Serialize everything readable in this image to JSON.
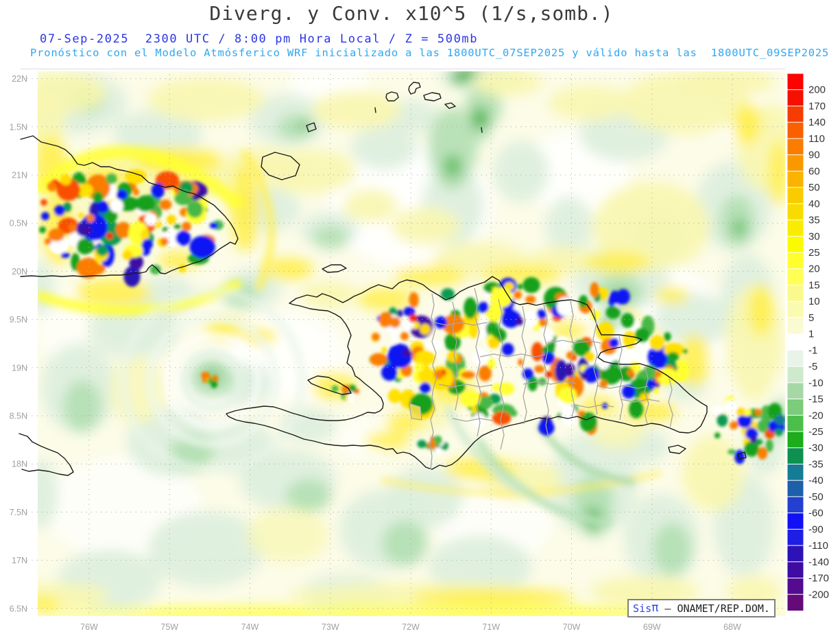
{
  "header": {
    "title": "Diverg. y Conv. x10^5 (1/s,somb.)",
    "datetime_line": "07-Sep-2025  2300 UTC / 8:00 pm Hora Local / Z = 500mb",
    "forecast_line": "Pronóstico con el Modelo Atmósferico WRF inicializado a las 1800UTC_07SEP2025 y válido hasta las  1800UTC_09SEP2025"
  },
  "map": {
    "lat_labels": [
      "22N",
      "1.5N",
      "21N",
      "0.5N",
      "20N",
      "9.5N",
      "19N",
      "8.5N",
      "18N",
      "7.5N",
      "17N",
      "6.5N"
    ],
    "lon_labels": [
      "76W",
      "75W",
      "74W",
      "73W",
      "72W",
      "71W",
      "70W",
      "69W",
      "68W"
    ],
    "level": "500mb",
    "units": "1/s"
  },
  "colorbar": {
    "tick_values": [
      "200",
      "170",
      "140",
      "110",
      "90",
      "60",
      "50",
      "40",
      "35",
      "30",
      "25",
      "20",
      "15",
      "10",
      "5",
      "1",
      "-1",
      "-5",
      "-10",
      "-15",
      "-20",
      "-25",
      "-30",
      "-35",
      "-40",
      "-50",
      "-60",
      "-90",
      "-110",
      "-140",
      "-170",
      "-200"
    ],
    "colors": [
      "#FB0400",
      "#F61000",
      "#F63C00",
      "#F96000",
      "#FA7C00",
      "#FA9800",
      "#FAB300",
      "#F9CC00",
      "#F8DC00",
      "#FAEC00",
      "#FBFB00",
      "#FFFF2E",
      "#FFFF55",
      "#FAFA8C",
      "#FAFAB0",
      "#FAFAD3",
      "#FFFFFF",
      "#E7F4E7",
      "#CDEACD",
      "#A6D8A6",
      "#7BCC7B",
      "#4CBE4C",
      "#1CAC1C",
      "#0E9150",
      "#147C94",
      "#1D5FA9",
      "#2340CF",
      "#1210F5",
      "#1E1EE6",
      "#2D12B6",
      "#3E0BA3",
      "#530B8F",
      "#650B79"
    ]
  },
  "attribution": {
    "brand_sis": "Sis",
    "brand_pi": "π",
    "dash": " – ",
    "org": "ONAMET/REP.DOM."
  },
  "colors": {
    "title_gray": "#3a3a3a",
    "datetime_blue": "#2a35e6",
    "forecast_blue": "#2ea7f2",
    "axis_gray": "#a0a0a0",
    "coast_black": "#1a1a1a",
    "border_gray": "#a6a6a6"
  }
}
